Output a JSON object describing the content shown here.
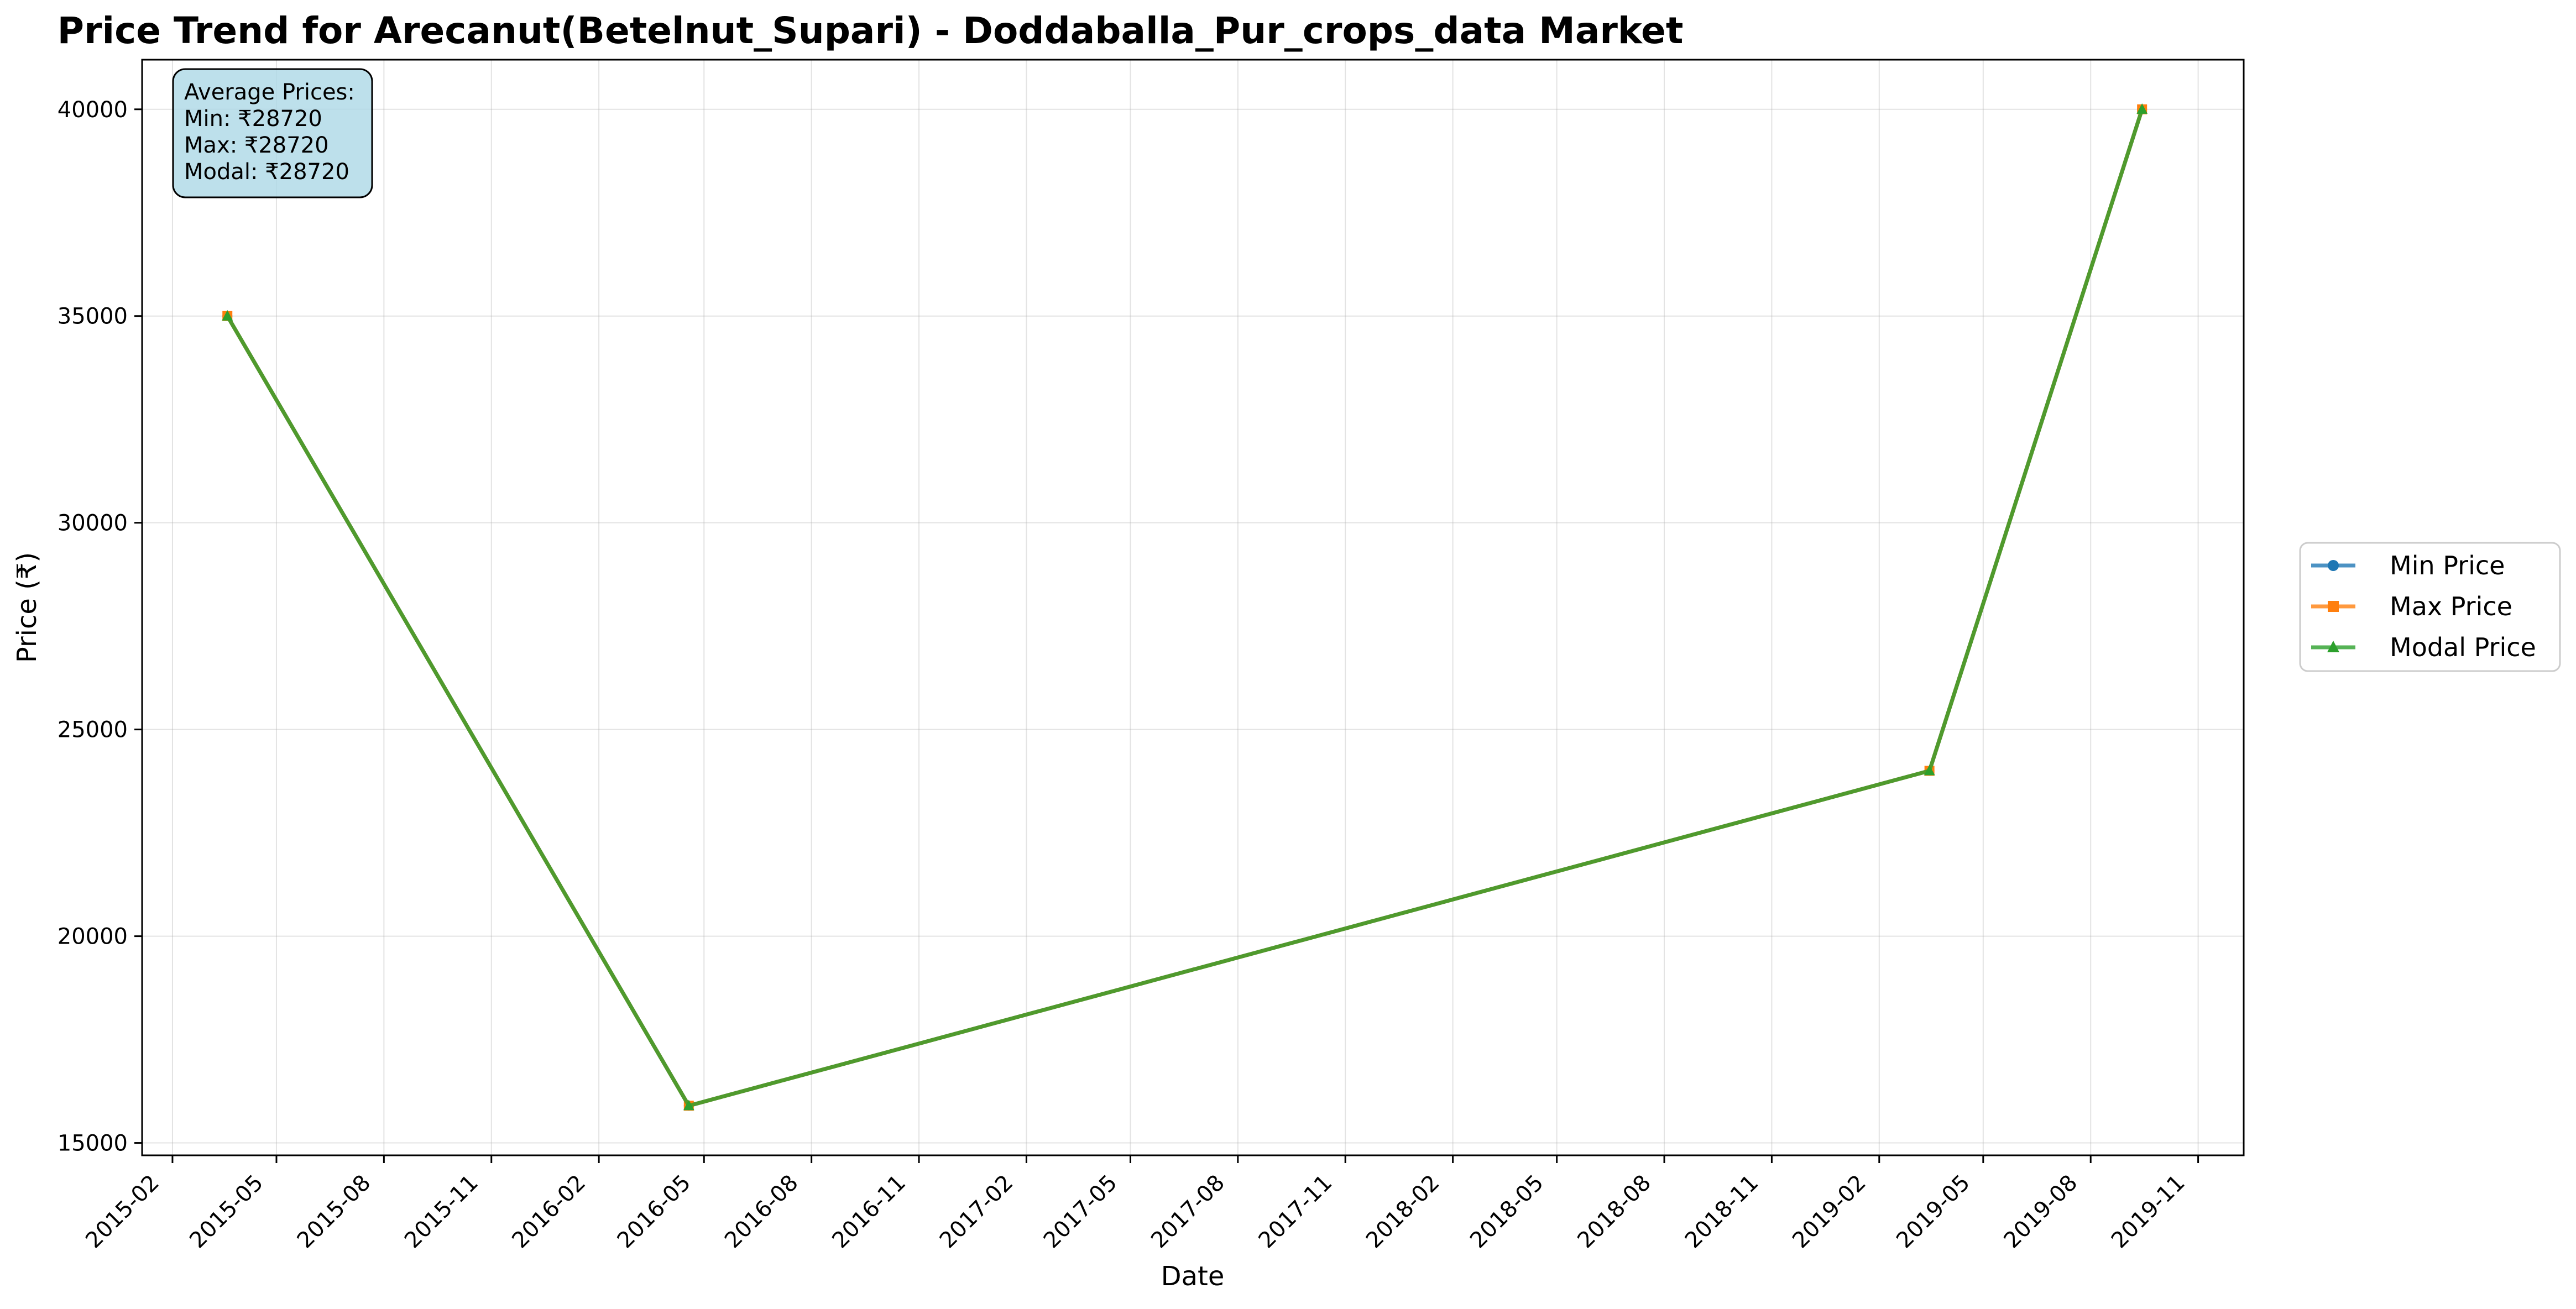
{
  "chart_data": {
    "type": "line",
    "title": "Price Trend for Arecanut(Betelnut_Supari) - Doddaballa_Pur_crops_data Market",
    "xlabel": "Date",
    "ylabel": "Price (₹)",
    "x_ticks": [
      "2015-02",
      "2015-05",
      "2015-08",
      "2015-11",
      "2016-02",
      "2016-05",
      "2016-08",
      "2016-11",
      "2017-02",
      "2017-05",
      "2017-08",
      "2017-11",
      "2018-02",
      "2018-05",
      "2018-08",
      "2018-11",
      "2019-02",
      "2019-05",
      "2019-08",
      "2019-11"
    ],
    "y_ticks": [
      15000,
      20000,
      25000,
      30000,
      35000,
      40000
    ],
    "ylim": [
      14700,
      41200
    ],
    "grid": true,
    "legend_position": "right, outside plot",
    "dates": [
      "2015-03-20",
      "2016-04-18",
      "2019-03-16",
      "2019-09-14"
    ],
    "series": [
      {
        "name": "Min Price",
        "marker": "circle",
        "color": "#1f77b4",
        "values": [
          35000,
          15900,
          24000,
          40000
        ]
      },
      {
        "name": "Max Price",
        "marker": "square",
        "color": "#ff7f0e",
        "values": [
          35000,
          15900,
          24000,
          40000
        ]
      },
      {
        "name": "Modal Price",
        "marker": "triangle",
        "color": "#2ca02c",
        "values": [
          35000,
          15900,
          24000,
          40000
        ]
      }
    ],
    "annotation": {
      "lines": [
        "Average Prices:",
        "Min: ₹28720",
        "Max: ₹28720",
        "Modal: ₹28720"
      ],
      "background": "#add8e6"
    }
  }
}
